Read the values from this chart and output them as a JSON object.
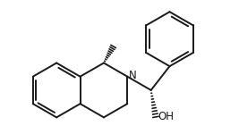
{
  "bg_color": "#ffffff",
  "line_color": "#1a1a1a",
  "line_width": 1.4,
  "figsize": [
    2.67,
    1.5
  ],
  "dpi": 100,
  "bond_r": 0.85
}
